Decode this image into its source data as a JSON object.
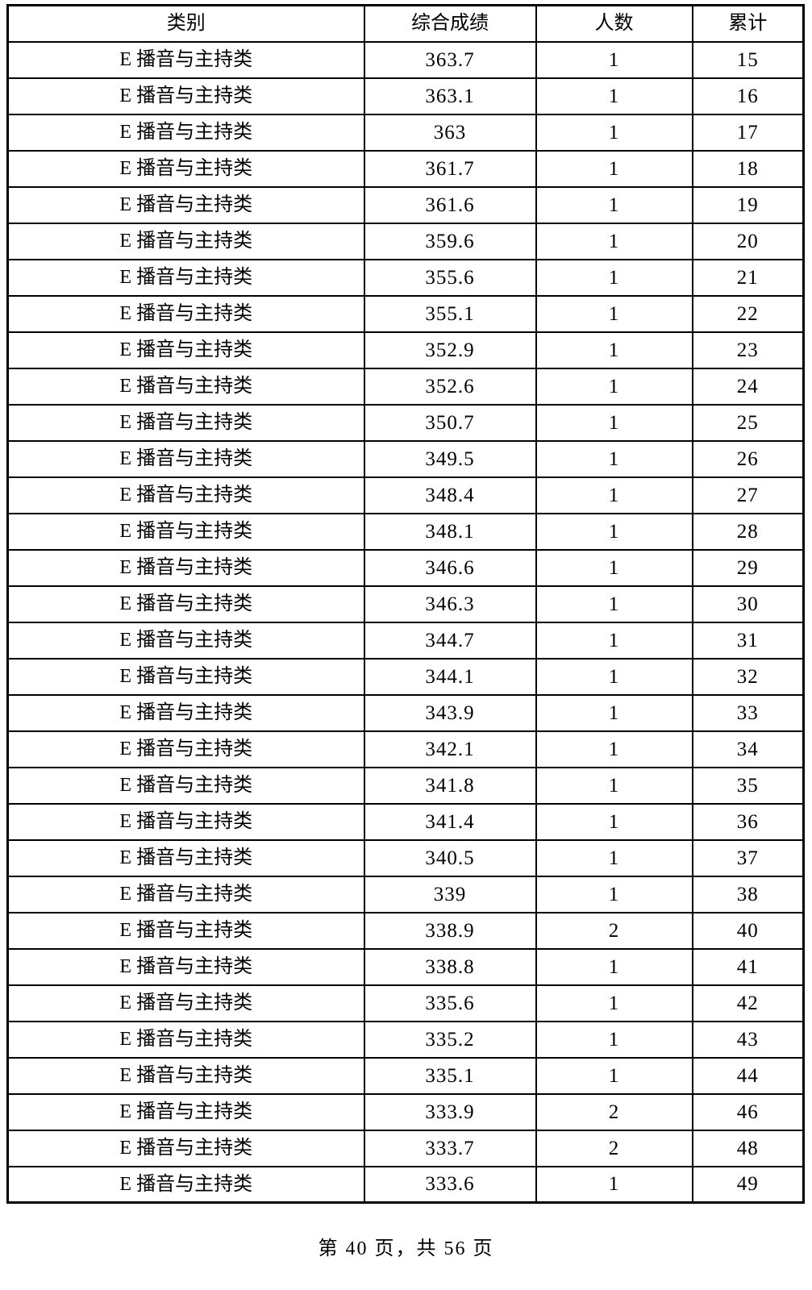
{
  "colors": {
    "text": "#000000",
    "border": "#000000",
    "background": "#ffffff"
  },
  "table": {
    "columns": [
      "类别",
      "综合成绩",
      "人数",
      "累计"
    ],
    "rows": [
      {
        "category": "E 播音与主持类",
        "score": "363.7",
        "count": "1",
        "cumulative": "15"
      },
      {
        "category": "E 播音与主持类",
        "score": "363.1",
        "count": "1",
        "cumulative": "16"
      },
      {
        "category": "E 播音与主持类",
        "score": "363",
        "count": "1",
        "cumulative": "17"
      },
      {
        "category": "E 播音与主持类",
        "score": "361.7",
        "count": "1",
        "cumulative": "18"
      },
      {
        "category": "E 播音与主持类",
        "score": "361.6",
        "count": "1",
        "cumulative": "19"
      },
      {
        "category": "E 播音与主持类",
        "score": "359.6",
        "count": "1",
        "cumulative": "20"
      },
      {
        "category": "E 播音与主持类",
        "score": "355.6",
        "count": "1",
        "cumulative": "21"
      },
      {
        "category": "E 播音与主持类",
        "score": "355.1",
        "count": "1",
        "cumulative": "22"
      },
      {
        "category": "E 播音与主持类",
        "score": "352.9",
        "count": "1",
        "cumulative": "23"
      },
      {
        "category": "E 播音与主持类",
        "score": "352.6",
        "count": "1",
        "cumulative": "24"
      },
      {
        "category": "E 播音与主持类",
        "score": "350.7",
        "count": "1",
        "cumulative": "25"
      },
      {
        "category": "E 播音与主持类",
        "score": "349.5",
        "count": "1",
        "cumulative": "26"
      },
      {
        "category": "E 播音与主持类",
        "score": "348.4",
        "count": "1",
        "cumulative": "27"
      },
      {
        "category": "E 播音与主持类",
        "score": "348.1",
        "count": "1",
        "cumulative": "28"
      },
      {
        "category": "E 播音与主持类",
        "score": "346.6",
        "count": "1",
        "cumulative": "29"
      },
      {
        "category": "E 播音与主持类",
        "score": "346.3",
        "count": "1",
        "cumulative": "30"
      },
      {
        "category": "E 播音与主持类",
        "score": "344.7",
        "count": "1",
        "cumulative": "31"
      },
      {
        "category": "E 播音与主持类",
        "score": "344.1",
        "count": "1",
        "cumulative": "32"
      },
      {
        "category": "E 播音与主持类",
        "score": "343.9",
        "count": "1",
        "cumulative": "33"
      },
      {
        "category": "E 播音与主持类",
        "score": "342.1",
        "count": "1",
        "cumulative": "34"
      },
      {
        "category": "E 播音与主持类",
        "score": "341.8",
        "count": "1",
        "cumulative": "35"
      },
      {
        "category": "E 播音与主持类",
        "score": "341.4",
        "count": "1",
        "cumulative": "36"
      },
      {
        "category": "E 播音与主持类",
        "score": "340.5",
        "count": "1",
        "cumulative": "37"
      },
      {
        "category": "E 播音与主持类",
        "score": "339",
        "count": "1",
        "cumulative": "38"
      },
      {
        "category": "E 播音与主持类",
        "score": "338.9",
        "count": "2",
        "cumulative": "40"
      },
      {
        "category": "E 播音与主持类",
        "score": "338.8",
        "count": "1",
        "cumulative": "41"
      },
      {
        "category": "E 播音与主持类",
        "score": "335.6",
        "count": "1",
        "cumulative": "42"
      },
      {
        "category": "E 播音与主持类",
        "score": "335.2",
        "count": "1",
        "cumulative": "43"
      },
      {
        "category": "E 播音与主持类",
        "score": "335.1",
        "count": "1",
        "cumulative": "44"
      },
      {
        "category": "E 播音与主持类",
        "score": "333.9",
        "count": "2",
        "cumulative": "46"
      },
      {
        "category": "E 播音与主持类",
        "score": "333.7",
        "count": "2",
        "cumulative": "48"
      },
      {
        "category": "E 播音与主持类",
        "score": "333.6",
        "count": "1",
        "cumulative": "49"
      }
    ]
  },
  "footer": {
    "page_indicator": "第 40 页，共 56 页"
  }
}
